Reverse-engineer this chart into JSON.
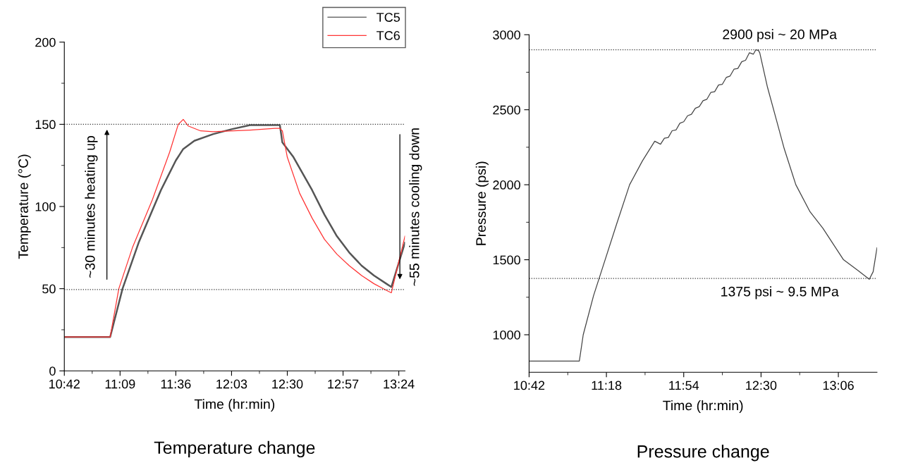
{
  "chart_data": [
    {
      "type": "line",
      "title": "Temperature change",
      "xlabel": "Time (hr:min)",
      "ylabel": "Temperature (°C)",
      "series": [
        {
          "name": "TC5",
          "color": "#555555",
          "x": [
            10.7,
            11.07,
            11.17,
            11.3,
            11.48,
            11.6,
            11.66,
            11.75,
            11.9,
            12.05,
            12.2,
            12.3,
            12.44,
            12.46,
            12.55,
            12.7,
            12.8,
            12.9,
            13.0,
            13.1,
            13.2,
            13.3,
            13.34,
            13.45
          ],
          "values": [
            20.6,
            20.6,
            50,
            78,
            110,
            128,
            135,
            140,
            144,
            147,
            149.5,
            149.5,
            149.5,
            139,
            130,
            110,
            95,
            82,
            72,
            64,
            58,
            53,
            51,
            78
          ]
        },
        {
          "name": "TC6",
          "color": "#ff3333",
          "x": [
            10.7,
            11.07,
            11.14,
            11.25,
            11.41,
            11.55,
            11.62,
            11.66,
            11.7,
            11.8,
            11.9,
            12.2,
            12.4,
            12.44,
            12.46,
            12.5,
            12.6,
            12.7,
            12.8,
            12.9,
            13.0,
            13.1,
            13.2,
            13.3,
            13.34,
            13.45
          ],
          "values": [
            20.6,
            20.6,
            50,
            75,
            104,
            133,
            150,
            153,
            149,
            146,
            145.5,
            146.5,
            147.5,
            147.5,
            146,
            130,
            108,
            93,
            80,
            71,
            64,
            58,
            53,
            49,
            47.5,
            82
          ]
        }
      ],
      "xlim": [
        10.7,
        13.45
      ],
      "ylim": [
        0,
        200
      ],
      "xticks": [
        {
          "value": 10.7,
          "label": "10:42"
        },
        {
          "value": 11.15,
          "label": "11:09"
        },
        {
          "value": 11.6,
          "label": "11:36"
        },
        {
          "value": 12.05,
          "label": "12:03"
        },
        {
          "value": 12.5,
          "label": "12:30"
        },
        {
          "value": 12.95,
          "label": "12:57"
        },
        {
          "value": 13.4,
          "label": "13:24"
        }
      ],
      "yticks": [
        0,
        50,
        100,
        150,
        200
      ],
      "ref_lines": [
        {
          "axis": "y",
          "value": 150,
          "line_style": "dotted",
          "color": "#333333"
        },
        {
          "axis": "y",
          "value": 49.5,
          "line_style": "dotted",
          "color": "#333333"
        }
      ],
      "annotations": [
        "~30 minutes heating up",
        "~55 minutes cooling down"
      ],
      "legend": "top right",
      "grid": false
    },
    {
      "type": "line",
      "title": "Pressure change",
      "xlabel": "Time (hr:min)",
      "ylabel": "Pressure (psi)",
      "series": [
        {
          "color": "#444444",
          "x": [
            10.7,
            11.09,
            11.12,
            11.2,
            11.29,
            11.38,
            11.48,
            11.58,
            11.675,
            11.72,
            11.75,
            11.78,
            11.81,
            11.84,
            11.87,
            11.9,
            11.93,
            11.96,
            11.99,
            12.02,
            12.05,
            12.08,
            12.11,
            12.14,
            12.17,
            12.2,
            12.23,
            12.26,
            12.29,
            12.32,
            12.35,
            12.38,
            12.41,
            12.44,
            12.46,
            12.48,
            12.49,
            12.55,
            12.62,
            12.68,
            12.77,
            12.88,
            12.98,
            13.14,
            13.25,
            13.34,
            13.37,
            13.4
          ],
          "values": [
            825,
            825,
            1000,
            1260,
            1500,
            1740,
            2000,
            2160,
            2290,
            2270,
            2310,
            2315,
            2360,
            2365,
            2410,
            2420,
            2460,
            2470,
            2510,
            2520,
            2560,
            2570,
            2615,
            2620,
            2665,
            2670,
            2715,
            2725,
            2770,
            2775,
            2820,
            2830,
            2880,
            2870,
            2900,
            2895,
            2880,
            2650,
            2430,
            2240,
            2000,
            1820,
            1710,
            1500,
            1430,
            1370,
            1420,
            1580
          ]
        }
      ],
      "xlim": [
        10.7,
        13.4
      ],
      "ylim": [
        750,
        3000
      ],
      "xticks": [
        {
          "value": 10.7,
          "label": "10:42"
        },
        {
          "value": 11.3,
          "label": "11:18"
        },
        {
          "value": 11.9,
          "label": "11:54"
        },
        {
          "value": 12.5,
          "label": "12:30"
        },
        {
          "value": 13.1,
          "label": "13:06"
        }
      ],
      "yticks": [
        1000,
        1500,
        2000,
        2500,
        3000
      ],
      "ref_lines": [
        {
          "axis": "y",
          "value": 2900,
          "label": "2900 psi ~ 20 MPa",
          "line_style": "dotted",
          "color": "#333333"
        },
        {
          "axis": "y",
          "value": 1375,
          "label": "1375 psi ~ 9.5 MPa",
          "line_style": "dotted",
          "color": "#333333"
        }
      ],
      "grid": false
    }
  ]
}
